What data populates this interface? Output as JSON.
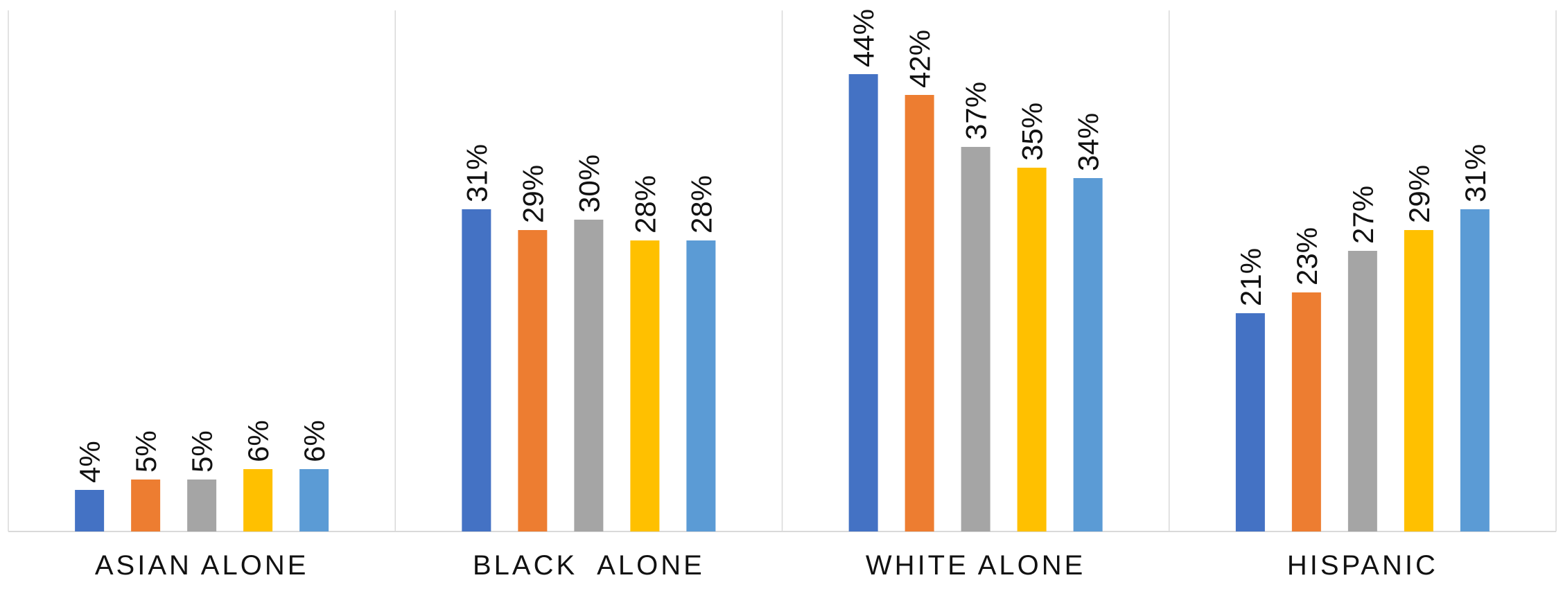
{
  "chart_data": {
    "type": "bar",
    "categories": [
      "ASIAN ALONE",
      "BLACK  ALONE",
      "WHITE ALONE",
      "HISPANIC"
    ],
    "series": [
      {
        "color": "#4472C4",
        "values": [
          4,
          31,
          44,
          21
        ],
        "labels": [
          "4%",
          "31%",
          "44%",
          "21%"
        ]
      },
      {
        "color": "#ED7D31",
        "values": [
          5,
          29,
          42,
          23
        ],
        "labels": [
          "5%",
          "29%",
          "42%",
          "23%"
        ]
      },
      {
        "color": "#A5A5A5",
        "values": [
          5,
          30,
          37,
          27
        ],
        "labels": [
          "5%",
          "30%",
          "37%",
          "27%"
        ]
      },
      {
        "color": "#FFC000",
        "values": [
          6,
          28,
          35,
          29
        ],
        "labels": [
          "6%",
          "28%",
          "35%",
          "29%"
        ]
      },
      {
        "color": "#5B9BD5",
        "values": [
          6,
          28,
          34,
          31
        ],
        "labels": [
          "6%",
          "28%",
          "34%",
          "31%"
        ]
      }
    ],
    "ylim": [
      0,
      50
    ],
    "data_labels": "rotated vertical above bars",
    "grid": false,
    "legend": "none"
  }
}
